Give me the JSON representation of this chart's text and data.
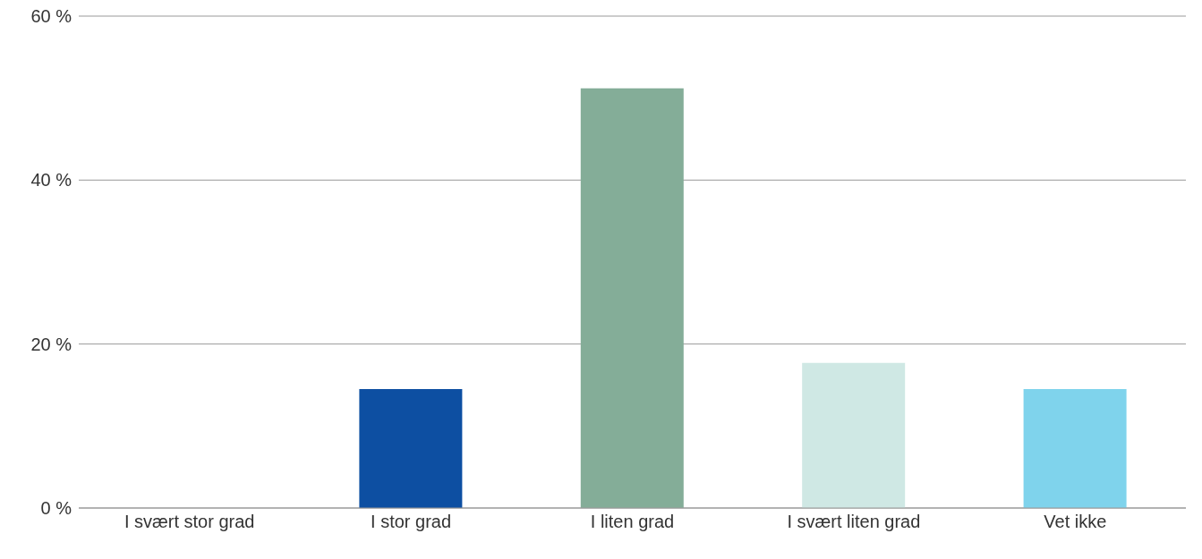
{
  "chart_data": {
    "type": "bar",
    "categories": [
      "I svært stor grad",
      "I stor grad",
      "I liten grad",
      "I svært liten grad",
      "Vet ikke"
    ],
    "values": [
      0,
      14.5,
      51.2,
      17.7,
      14.5
    ],
    "colors": [
      null,
      "#0d4fa2",
      "#84ad98",
      "#cfe8e4",
      "#7fd3ec"
    ],
    "ylim": [
      0,
      60
    ],
    "yticks": [
      {
        "value": 0,
        "label": "0 %"
      },
      {
        "value": 20,
        "label": "20 %"
      },
      {
        "value": 40,
        "label": "40 %"
      },
      {
        "value": 60,
        "label": "60 %"
      }
    ],
    "grid": "y"
  }
}
